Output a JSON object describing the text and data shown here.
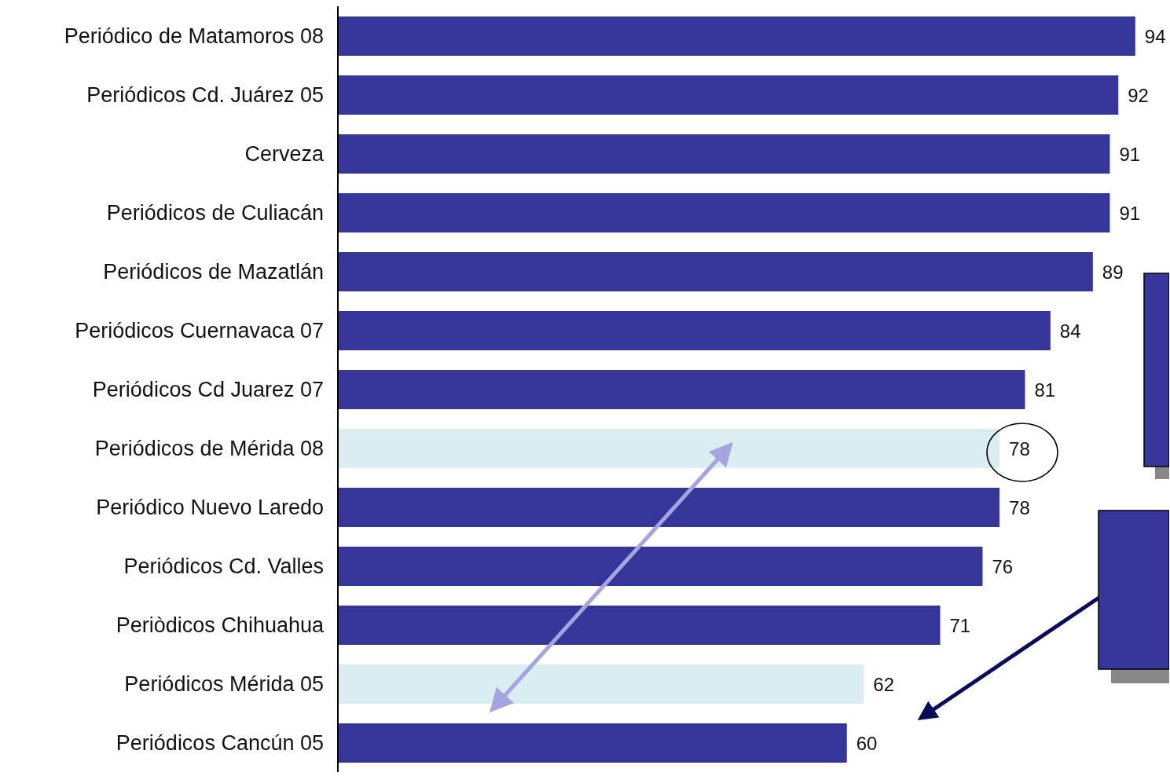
{
  "chart_data": {
    "type": "bar",
    "orientation": "horizontal",
    "categories": [
      "Periódico de Matamoros 08",
      "Periódicos Cd. Juárez 05",
      "Cerveza",
      "Periódicos de Culiacán",
      "Periódicos de Mazatlán",
      "Periódicos Cuernavaca 07",
      "Periódicos Cd Juarez 07",
      "Periódicos de Mérida 08",
      "Periódico Nuevo Laredo",
      "Periódicos Cd. Valles",
      "Periòdicos Chihuahua",
      "Periódicos Mérida 05",
      "Periódicos Cancún 05"
    ],
    "values": [
      94,
      92,
      91,
      91,
      89,
      84,
      81,
      78,
      78,
      76,
      71,
      62,
      60
    ],
    "colors": [
      "#35359a",
      "#35359a",
      "#35359a",
      "#35359a",
      "#35359a",
      "#35359a",
      "#35359a",
      "#daedf0",
      "#35359a",
      "#35359a",
      "#35359a",
      "#daedf0",
      "#35359a"
    ],
    "xlim": [
      0,
      98
    ],
    "tick_labels": "y",
    "data_labels": true
  }
}
